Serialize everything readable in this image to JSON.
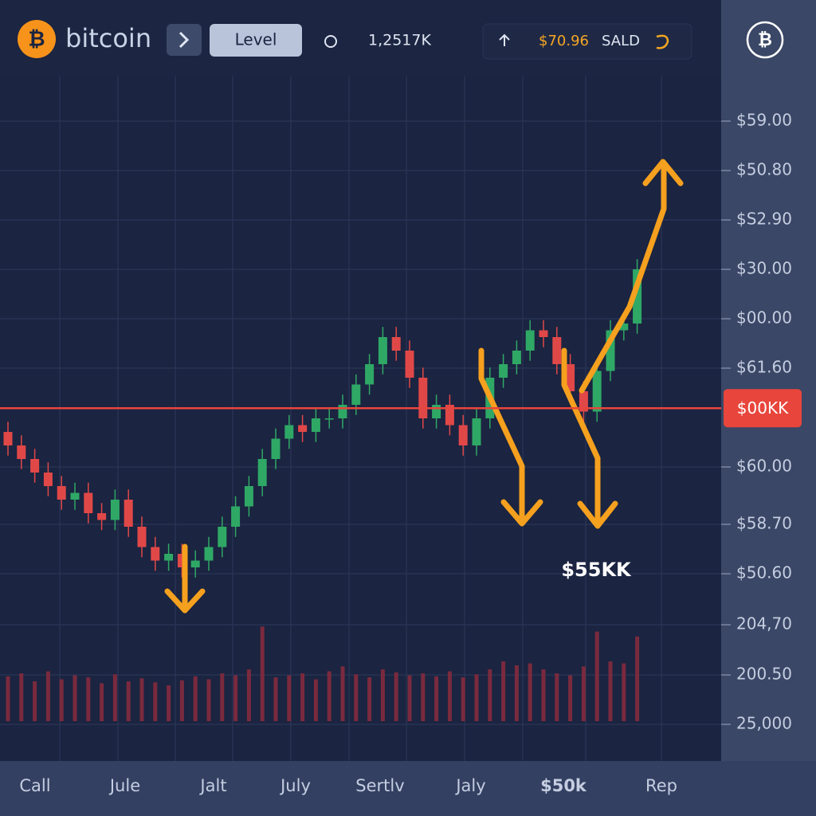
{
  "header": {
    "brand": "bitcoin",
    "level_button": "Level",
    "volume": "1,2517K",
    "price": "$70.96",
    "action": "SALD"
  },
  "chart_data": {
    "type": "candlestick",
    "open": [
      48,
      46,
      44,
      42,
      40,
      38,
      39,
      36,
      35,
      38,
      34,
      31,
      29,
      30,
      28,
      29,
      31,
      34,
      37,
      40,
      44,
      47,
      49,
      48,
      50,
      50,
      52,
      55,
      58,
      62,
      60,
      56,
      50,
      52,
      49,
      46,
      50,
      56,
      58,
      60,
      63,
      62,
      58,
      54,
      51,
      57,
      63,
      64
    ],
    "high": [
      49.5,
      47.5,
      45.5,
      43.5,
      41.5,
      40.5,
      40.5,
      37.5,
      39.5,
      39.5,
      35.5,
      32.5,
      31.5,
      31.5,
      30.5,
      32.5,
      35.5,
      38.5,
      41.5,
      45.5,
      48.5,
      50.5,
      50.5,
      51.5,
      51.5,
      53.5,
      56.5,
      59.5,
      63.5,
      63.5,
      61.5,
      57.5,
      53.5,
      53.5,
      50.5,
      51.5,
      57.5,
      59.5,
      61.5,
      64.5,
      64.5,
      63.5,
      59.5,
      55.5,
      58.5,
      64.5,
      65.5,
      73.5
    ],
    "low": [
      44.5,
      42.5,
      40.5,
      38.5,
      36.5,
      36.5,
      34.5,
      33.5,
      33.5,
      32.5,
      29.5,
      27.5,
      27.5,
      26.5,
      26.5,
      27.5,
      29.5,
      32.5,
      35.5,
      38.5,
      42.5,
      45.5,
      46.5,
      46.5,
      48.5,
      48.5,
      50.5,
      53.5,
      56.5,
      58.5,
      54.5,
      48.5,
      48.5,
      47.5,
      44.5,
      44.5,
      48.5,
      54.5,
      56.5,
      58.5,
      60.5,
      56.5,
      52.5,
      49.5,
      49.5,
      55.5,
      61.5,
      62.5
    ],
    "close": [
      46,
      44,
      42,
      40,
      38,
      39,
      36,
      35,
      38,
      34,
      31,
      29,
      30,
      28,
      29,
      31,
      34,
      37,
      40,
      44,
      47,
      49,
      48,
      50,
      50,
      52,
      55,
      58,
      62,
      60,
      56,
      50,
      52,
      49,
      46,
      50,
      56,
      58,
      60,
      63,
      62,
      58,
      54,
      51,
      57,
      63,
      64,
      72
    ],
    "volume": [
      45,
      48,
      40,
      50,
      42,
      46,
      44,
      38,
      47,
      40,
      43,
      39,
      36,
      41,
      45,
      42,
      48,
      46,
      52,
      95,
      44,
      46,
      48,
      42,
      50,
      55,
      47,
      44,
      52,
      49,
      46,
      48,
      45,
      50,
      44,
      47,
      52,
      60,
      56,
      58,
      52,
      48,
      46,
      55,
      90,
      60,
      58,
      85
    ],
    "ylim": [
      0,
      100
    ],
    "y2lim": [
      0,
      100
    ],
    "up_color": "#2fa866",
    "down_color": "#e04848",
    "price_line": 51.5,
    "price_line_label": "$00KK",
    "annotation": "$55KK",
    "price_labels": [
      "$59.00",
      "$50.80",
      "$S2.90",
      "$30.00",
      "$00.00",
      "$61.60",
      "$60.00",
      "$58.70",
      "$50.60",
      "204,70",
      "200.50",
      "25,000"
    ],
    "categories": [
      "Call",
      "Jule",
      "Jalt",
      "July",
      "Sertlv",
      "Jaly",
      "$50k",
      "Rep"
    ]
  }
}
